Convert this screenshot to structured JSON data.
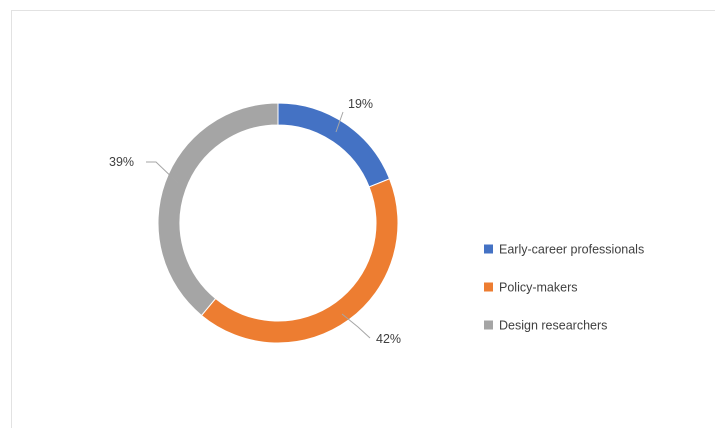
{
  "chart_data": {
    "type": "pie",
    "donut": true,
    "title": "",
    "series": [
      {
        "name": "Early-career professionals",
        "value": 19,
        "label": "19%",
        "color": "#4472C4"
      },
      {
        "name": "Policy-makers",
        "value": 42,
        "label": "42%",
        "color": "#ED7D31"
      },
      {
        "name": "Design researchers",
        "value": 39,
        "label": "39%",
        "color": "#A5A5A5"
      }
    ],
    "legend_position": "right"
  }
}
